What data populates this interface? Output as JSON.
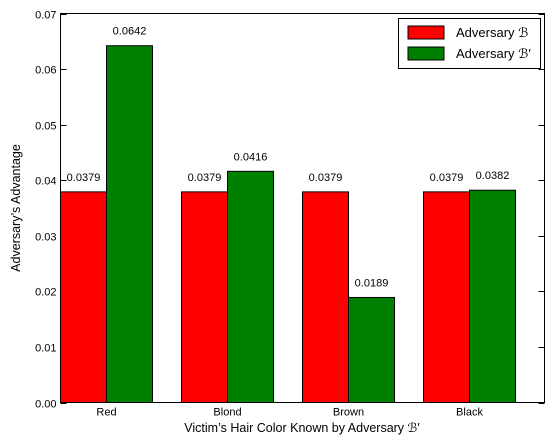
{
  "chart_data": {
    "type": "bar",
    "categories": [
      "Red",
      "Blond",
      "Brown",
      "Black"
    ],
    "series": [
      {
        "name": "Adversary ℬ",
        "color": "#ff0000",
        "values": [
          0.0379,
          0.0379,
          0.0379,
          0.0379
        ],
        "labels": [
          "0.0379",
          "0.0379",
          "0.0379",
          "0.0379"
        ]
      },
      {
        "name": "Adversary ℬ′",
        "color": "#008000",
        "values": [
          0.0642,
          0.0416,
          0.0189,
          0.0382
        ],
        "labels": [
          "0.0642",
          "0.0416",
          "0.0189",
          "0.0382"
        ]
      }
    ],
    "xlabel": "Victim’s Hair Color Known by Adversary ℬ′",
    "ylabel": "Adversary’s Advantage",
    "ylim": [
      0,
      0.07
    ],
    "yticks": [
      "0.00",
      "0.01",
      "0.02",
      "0.03",
      "0.04",
      "0.05",
      "0.06",
      "0.07"
    ],
    "legend_position": "top-right",
    "grid": false
  }
}
